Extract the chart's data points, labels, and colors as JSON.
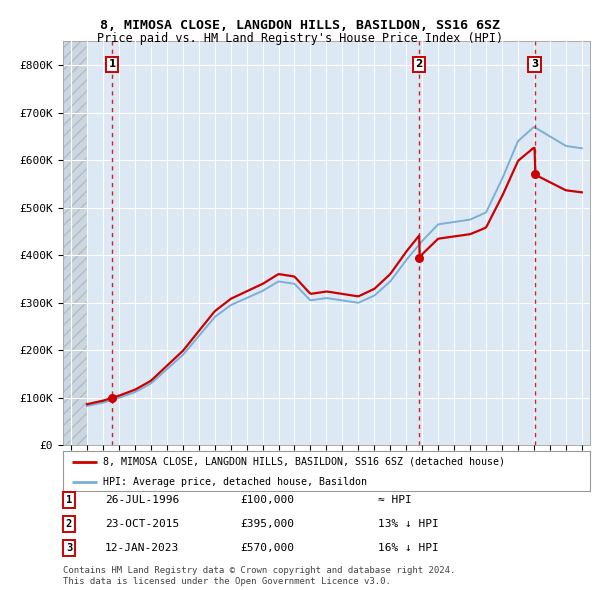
{
  "title": "8, MIMOSA CLOSE, LANGDON HILLS, BASILDON, SS16 6SZ",
  "subtitle": "Price paid vs. HM Land Registry's House Price Index (HPI)",
  "background_color": "#ffffff",
  "plot_bg_color": "#dce9f5",
  "grid_color": "#ffffff",
  "sale_color": "#cc0000",
  "hpi_color": "#7bafd4",
  "ylim": [
    0,
    850000
  ],
  "yticks": [
    0,
    100000,
    200000,
    300000,
    400000,
    500000,
    600000,
    700000,
    800000
  ],
  "ytick_labels": [
    "£0",
    "£100K",
    "£200K",
    "£300K",
    "£400K",
    "£500K",
    "£600K",
    "£700K",
    "£800K"
  ],
  "xlim_start": 1993.5,
  "xlim_end": 2026.5,
  "sales": [
    {
      "date_num": 1996.57,
      "price": 100000,
      "label": "1"
    },
    {
      "date_num": 2015.81,
      "price": 395000,
      "label": "2"
    },
    {
      "date_num": 2023.04,
      "price": 570000,
      "label": "3"
    }
  ],
  "vline_dates": [
    1996.57,
    2015.81,
    2023.04
  ],
  "legend_sale_label": "8, MIMOSA CLOSE, LANGDON HILLS, BASILDON, SS16 6SZ (detached house)",
  "legend_hpi_label": "HPI: Average price, detached house, Basildon",
  "table_rows": [
    {
      "num": "1",
      "date": "26-JUL-1996",
      "price": "£100,000",
      "hpi": "≈ HPI"
    },
    {
      "num": "2",
      "date": "23-OCT-2015",
      "price": "£395,000",
      "hpi": "13% ↓ HPI"
    },
    {
      "num": "3",
      "date": "12-JAN-2023",
      "price": "£570,000",
      "hpi": "16% ↓ HPI"
    }
  ],
  "footnote": "Contains HM Land Registry data © Crown copyright and database right 2024.\nThis data is licensed under the Open Government Licence v3.0."
}
